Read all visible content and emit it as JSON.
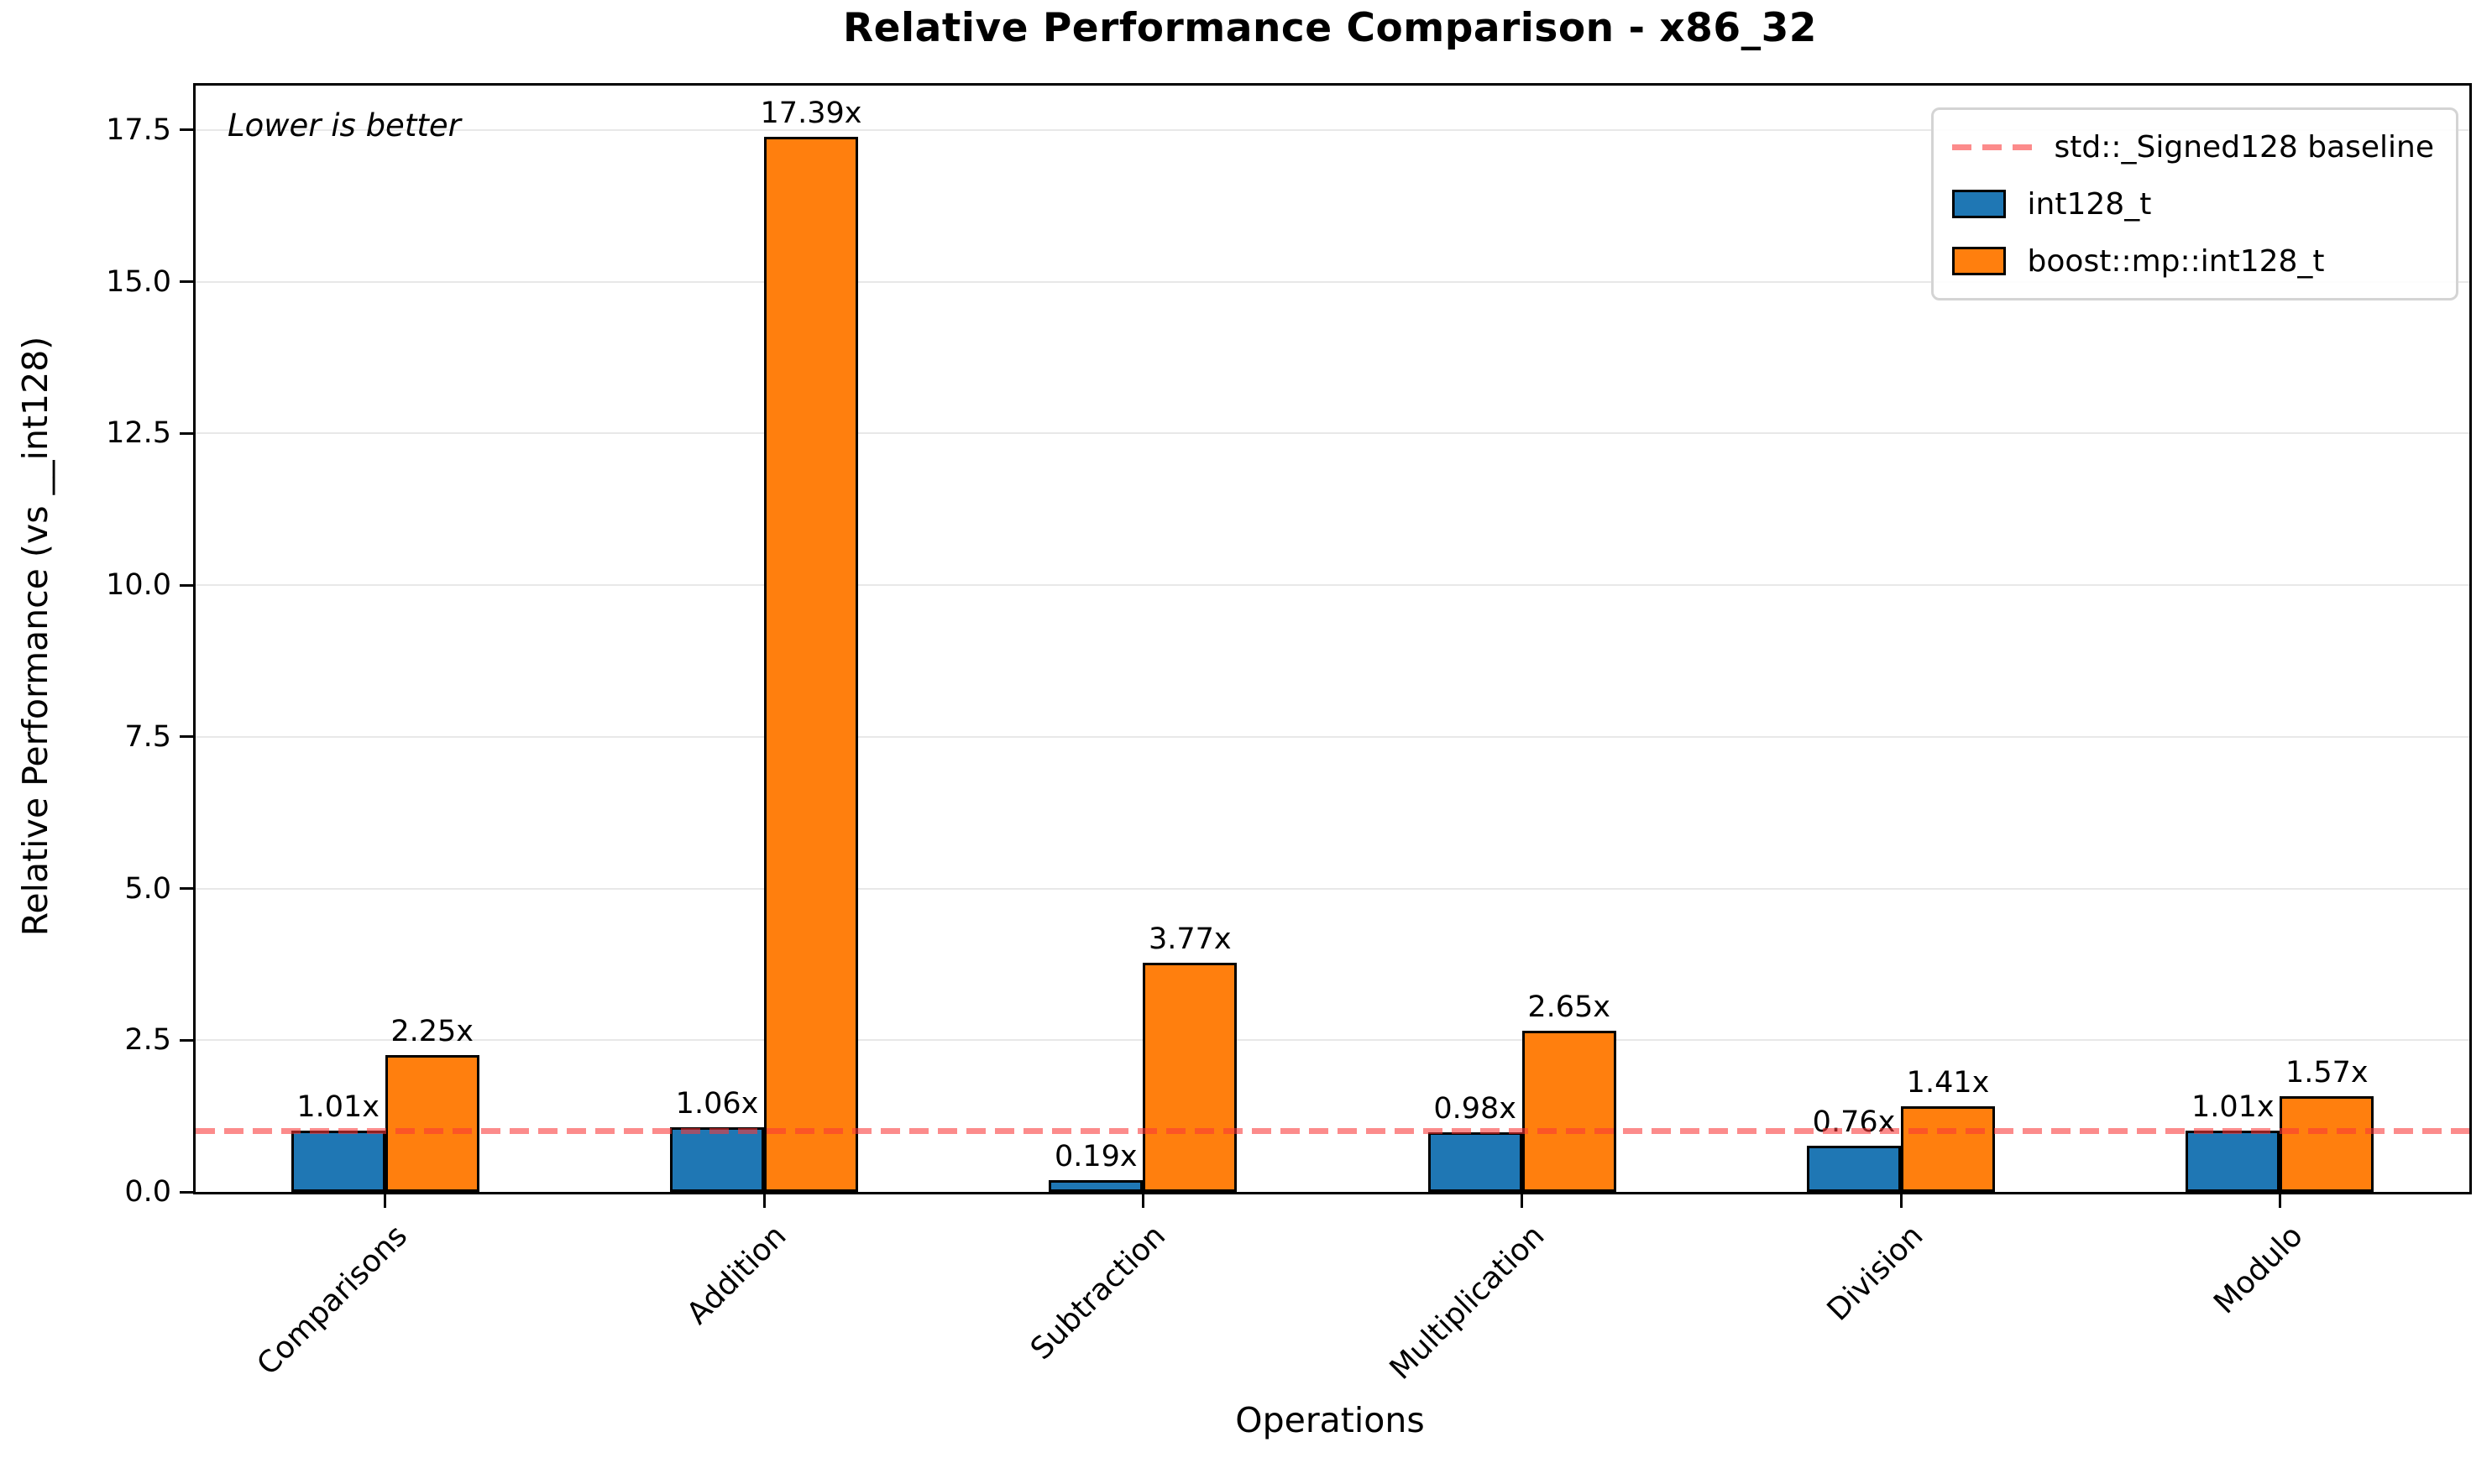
{
  "chart_data": {
    "type": "bar",
    "title": "Relative Performance Comparison - x86_32",
    "xlabel": "Operations",
    "ylabel": "Relative Performance (vs __int128)",
    "annotation": "Lower is better",
    "categories": [
      "Comparisons",
      "Addition",
      "Subtraction",
      "Multiplication",
      "Division",
      "Modulo"
    ],
    "series": [
      {
        "name": "int128_t",
        "color": "#1f77b4",
        "values": [
          1.01,
          1.06,
          0.19,
          0.98,
          0.76,
          1.01
        ],
        "labels": [
          "1.01x",
          "1.06x",
          "0.19x",
          "0.98x",
          "0.76x",
          "1.01x"
        ]
      },
      {
        "name": "boost::mp::int128_t",
        "color": "#ff7f0e",
        "values": [
          2.25,
          17.39,
          3.77,
          2.65,
          1.41,
          1.57
        ],
        "labels": [
          "2.25x",
          "17.39x",
          "3.77x",
          "2.65x",
          "1.41x",
          "1.57x"
        ]
      }
    ],
    "baseline": {
      "value": 1.0,
      "label": "std::_Signed128 baseline",
      "color_rgba": "rgba(250,55,55,0.58)"
    },
    "bar_edge_color": "#000000",
    "yticks": [
      0.0,
      2.5,
      5.0,
      7.5,
      10.0,
      12.5,
      15.0,
      17.5
    ],
    "ytick_labels": [
      "0.0",
      "2.5",
      "5.0",
      "7.5",
      "10.0",
      "12.5",
      "15.0",
      "17.5"
    ],
    "ylim": [
      0,
      18.23
    ],
    "grid": "horizontal",
    "grid_color": "#e8e8e8",
    "legend_position": "upper right"
  }
}
